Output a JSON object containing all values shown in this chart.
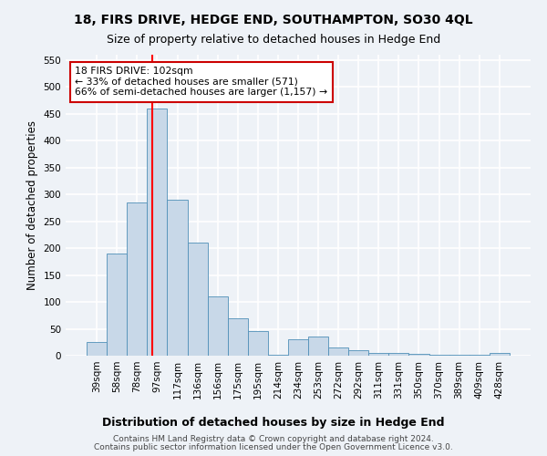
{
  "title": "18, FIRS DRIVE, HEDGE END, SOUTHAMPTON, SO30 4QL",
  "subtitle": "Size of property relative to detached houses in Hedge End",
  "xlabel": "Distribution of detached houses by size in Hedge End",
  "ylabel": "Number of detached properties",
  "bin_labels": [
    "39sqm",
    "58sqm",
    "78sqm",
    "97sqm",
    "117sqm",
    "136sqm",
    "156sqm",
    "175sqm",
    "195sqm",
    "214sqm",
    "234sqm",
    "253sqm",
    "272sqm",
    "292sqm",
    "311sqm",
    "331sqm",
    "350sqm",
    "370sqm",
    "389sqm",
    "409sqm",
    "428sqm"
  ],
  "bar_heights": [
    25,
    190,
    285,
    460,
    290,
    210,
    110,
    70,
    45,
    2,
    30,
    35,
    15,
    10,
    5,
    5,
    3,
    2,
    2,
    1,
    5
  ],
  "bar_color": "#c8d8e8",
  "bar_edge_color": "#5090b8",
  "annotation_text": "18 FIRS DRIVE: 102sqm\n← 33% of detached houses are smaller (571)\n66% of semi-detached houses are larger (1,157) →",
  "annotation_box_color": "#ffffff",
  "annotation_box_edge": "#cc0000",
  "ylim": [
    0,
    560
  ],
  "yticks": [
    0,
    50,
    100,
    150,
    200,
    250,
    300,
    350,
    400,
    450,
    500,
    550
  ],
  "footnote1": "Contains HM Land Registry data © Crown copyright and database right 2024.",
  "footnote2": "Contains public sector information licensed under the Open Government Licence v3.0.",
  "bg_color": "#eef2f7",
  "plot_bg_color": "#eef2f7",
  "grid_color": "#ffffff",
  "title_fontsize": 10,
  "subtitle_fontsize": 9,
  "tick_fontsize": 7.5,
  "ylabel_fontsize": 8.5,
  "xlabel_fontsize": 9
}
